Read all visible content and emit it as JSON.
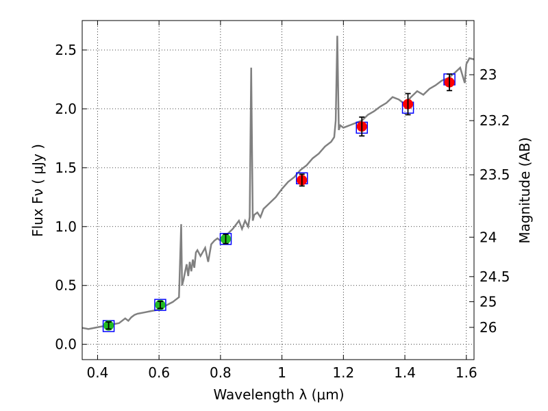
{
  "chart_data": {
    "type": "line",
    "title": "",
    "xlabel": "Wavelength  λ (μm)",
    "ylabel": "Flux  Fν  ( μJy )",
    "ylabel_right": "Magnitude (AB)",
    "xlim": [
      0.35,
      1.625
    ],
    "ylim": [
      -0.13,
      2.75
    ],
    "grid": true,
    "x_ticks": [
      0.4,
      0.6,
      0.8,
      1.0,
      1.2,
      1.4,
      1.6
    ],
    "x_tick_labels": [
      "0.4",
      "0.6",
      "0.8",
      "1",
      "1.2",
      "1.4",
      "1.6"
    ],
    "y_ticks": [
      0.0,
      0.5,
      1.0,
      1.5,
      2.0,
      2.5
    ],
    "y_tick_labels": [
      "0.0",
      "0.5",
      "1.0",
      "1.5",
      "2.0",
      "2.5"
    ],
    "right_axis_ticks": [
      {
        "label": "23",
        "flux": 2.29
      },
      {
        "label": "23.2",
        "flux": 1.9
      },
      {
        "label": "23.5",
        "flux": 1.44
      },
      {
        "label": "24",
        "flux": 0.91
      },
      {
        "label": "24.5",
        "flux": 0.575
      },
      {
        "label": "25",
        "flux": 0.362
      },
      {
        "label": "26",
        "flux": 0.144
      }
    ],
    "series": [
      {
        "kind": "spectrum",
        "color": "#808080",
        "x": [
          0.35,
          0.37,
          0.39,
          0.41,
          0.43,
          0.45,
          0.47,
          0.49,
          0.5,
          0.51,
          0.52,
          0.53,
          0.55,
          0.57,
          0.59,
          0.61,
          0.63,
          0.645,
          0.655,
          0.665,
          0.672,
          0.675,
          0.68,
          0.685,
          0.69,
          0.695,
          0.7,
          0.705,
          0.71,
          0.715,
          0.72,
          0.725,
          0.735,
          0.75,
          0.76,
          0.77,
          0.78,
          0.79,
          0.8,
          0.82,
          0.84,
          0.86,
          0.87,
          0.88,
          0.89,
          0.895,
          0.9,
          0.905,
          0.91,
          0.92,
          0.93,
          0.94,
          0.96,
          0.98,
          1.0,
          1.02,
          1.04,
          1.06,
          1.08,
          1.1,
          1.12,
          1.14,
          1.16,
          1.17,
          1.175,
          1.18,
          1.185,
          1.19,
          1.2,
          1.22,
          1.24,
          1.26,
          1.28,
          1.3,
          1.32,
          1.34,
          1.36,
          1.38,
          1.4,
          1.42,
          1.44,
          1.46,
          1.48,
          1.5,
          1.52,
          1.54,
          1.56,
          1.58,
          1.595,
          1.6,
          1.61,
          1.625
        ],
        "y": [
          0.14,
          0.13,
          0.14,
          0.15,
          0.16,
          0.17,
          0.18,
          0.22,
          0.2,
          0.23,
          0.25,
          0.26,
          0.27,
          0.28,
          0.29,
          0.31,
          0.34,
          0.36,
          0.38,
          0.4,
          1.02,
          0.5,
          0.55,
          0.62,
          0.68,
          0.58,
          0.7,
          0.62,
          0.72,
          0.65,
          0.78,
          0.8,
          0.75,
          0.82,
          0.7,
          0.85,
          0.88,
          0.9,
          0.88,
          0.93,
          0.98,
          1.05,
          0.98,
          1.05,
          1.0,
          1.08,
          2.35,
          1.05,
          1.1,
          1.12,
          1.08,
          1.15,
          1.2,
          1.25,
          1.32,
          1.38,
          1.42,
          1.48,
          1.52,
          1.58,
          1.62,
          1.68,
          1.72,
          1.76,
          1.9,
          2.62,
          1.82,
          1.86,
          1.84,
          1.86,
          1.88,
          1.9,
          1.95,
          1.98,
          2.02,
          2.05,
          2.1,
          2.08,
          2.04,
          2.1,
          2.15,
          2.12,
          2.17,
          2.2,
          2.24,
          2.26,
          2.3,
          2.35,
          2.22,
          2.38,
          2.43,
          2.42
        ]
      },
      {
        "kind": "model-photometry",
        "color": "#0000ff",
        "x": [
          0.436,
          0.604,
          0.817,
          1.065,
          1.26,
          1.41,
          1.545
        ],
        "y": [
          0.155,
          0.335,
          0.895,
          1.41,
          1.84,
          2.01,
          2.25
        ]
      },
      {
        "kind": "observed-optical",
        "color": "#22bb22",
        "x": [
          0.436,
          0.604,
          0.817
        ],
        "y": [
          0.16,
          0.335,
          0.895
        ],
        "err": [
          0.03,
          0.03,
          0.04
        ]
      },
      {
        "kind": "observed-nir",
        "color": "#ff0000",
        "x": [
          1.065,
          1.26,
          1.41,
          1.545
        ],
        "y": [
          1.395,
          1.85,
          2.04,
          2.225
        ],
        "err": [
          0.05,
          0.08,
          0.09,
          0.07
        ]
      }
    ]
  }
}
